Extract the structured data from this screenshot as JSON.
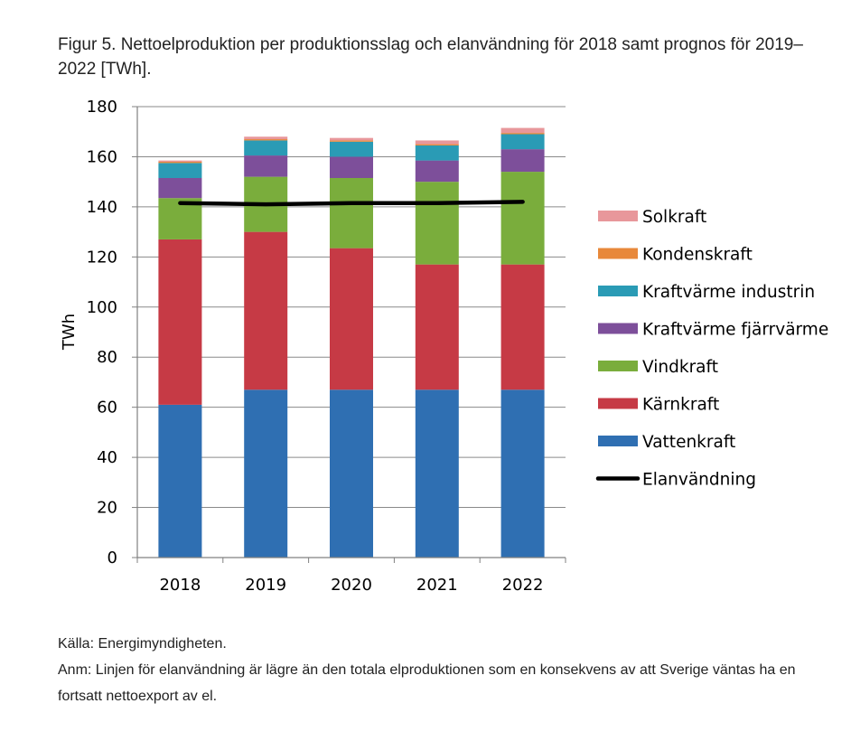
{
  "figure": {
    "caption": "Figur 5. Nettoelproduktion per produktionsslag och elanvändning för 2018 samt prognos för 2019–2022 [TWh].",
    "source": "Källa: Energimyndigheten.",
    "remark": "Anm: Linjen för elanvändning är lägre än den totala elproduktionen som en konsekvens av att Sverige väntas ha en fortsatt nettoexport av el."
  },
  "chart_data": {
    "type": "bar",
    "stacked": true,
    "title": "",
    "xlabel": "",
    "ylabel": "TWh",
    "ylim": [
      0,
      180
    ],
    "yticks": [
      0,
      20,
      40,
      60,
      80,
      100,
      120,
      140,
      160,
      180
    ],
    "grid": true,
    "legend_position": "right",
    "categories": [
      "2018",
      "2019",
      "2020",
      "2021",
      "2022"
    ],
    "series": [
      {
        "name": "Vattenkraft",
        "color": "#2f6fb2",
        "values": [
          61,
          67,
          67,
          67,
          67
        ]
      },
      {
        "name": "Kärnkraft",
        "color": "#c63a45",
        "values": [
          66,
          63,
          56.5,
          50,
          50
        ]
      },
      {
        "name": "Vindkraft",
        "color": "#7aad3c",
        "values": [
          16.5,
          22,
          28,
          33,
          37
        ]
      },
      {
        "name": "Kraftvärme fjärrvärme",
        "color": "#7d4f9a",
        "values": [
          8,
          8.5,
          8.5,
          8.5,
          9
        ]
      },
      {
        "name": "Kraftvärme industrin",
        "color": "#2a9bb5",
        "values": [
          6,
          6,
          6,
          6,
          6
        ]
      },
      {
        "name": "Kondenskraft",
        "color": "#e8883a",
        "values": [
          0.5,
          0.5,
          0.5,
          0.5,
          0.5
        ]
      },
      {
        "name": "Solkraft",
        "color": "#e8979b",
        "values": [
          0.5,
          1,
          1,
          1.5,
          2
        ]
      }
    ],
    "lines": [
      {
        "name": "Elanvändning",
        "color": "#000000",
        "values": [
          141.5,
          141,
          141.5,
          141.5,
          142
        ]
      }
    ],
    "legend_order": [
      "Solkraft",
      "Kondenskraft",
      "Kraftvärme industrin",
      "Kraftvärme fjärrvärme",
      "Vindkraft",
      "Kärnkraft",
      "Vattenkraft",
      "Elanvändning"
    ]
  }
}
